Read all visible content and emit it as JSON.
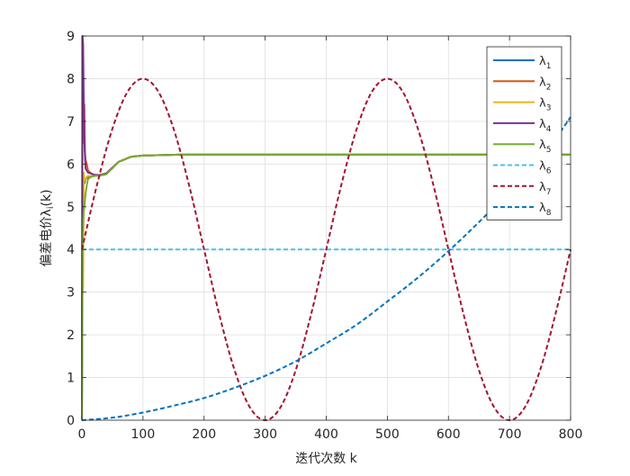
{
  "chart_data": {
    "type": "line",
    "title": "",
    "xlabel": "迭代次数 k",
    "ylabel_prefix": "偏差电价",
    "ylabel_symbol": "λ",
    "ylabel_sub": "i",
    "ylabel_suffix": "(k)",
    "xlim": [
      0,
      800
    ],
    "ylim": [
      0,
      9
    ],
    "xticks": [
      0,
      100,
      200,
      300,
      400,
      500,
      600,
      700,
      800
    ],
    "yticks": [
      0,
      1,
      2,
      3,
      4,
      5,
      6,
      7,
      8,
      9
    ],
    "grid": true,
    "legend_position": "top-right",
    "series": [
      {
        "name": "λ",
        "sub": "1",
        "color": "#0072BD",
        "style": "solid",
        "x": [
          0,
          1,
          2,
          4,
          6,
          10,
          20,
          30,
          40,
          60,
          80,
          100,
          130,
          160,
          200,
          300,
          400,
          500,
          600,
          700,
          800
        ],
        "y": [
          0,
          5.6,
          5.7,
          5.55,
          5.65,
          5.7,
          5.72,
          5.75,
          5.78,
          6.05,
          6.17,
          6.2,
          6.21,
          6.22,
          6.22,
          6.22,
          6.22,
          6.22,
          6.22,
          6.22,
          6.22
        ]
      },
      {
        "name": "λ",
        "sub": "2",
        "color": "#D95319",
        "style": "solid",
        "x": [
          0,
          1,
          2,
          3,
          4,
          5,
          6,
          8,
          10,
          15,
          20,
          30,
          40,
          60,
          80,
          100,
          130,
          160,
          200,
          300,
          400,
          500,
          600,
          700,
          800
        ],
        "y": [
          0,
          7.6,
          6.8,
          6.5,
          7.4,
          6.3,
          6.1,
          6.0,
          5.85,
          5.78,
          5.75,
          5.74,
          5.78,
          6.05,
          6.17,
          6.2,
          6.21,
          6.22,
          6.22,
          6.22,
          6.22,
          6.22,
          6.22,
          6.22,
          6.22
        ]
      },
      {
        "name": "λ",
        "sub": "3",
        "color": "#EDB120",
        "style": "solid",
        "x": [
          0,
          1,
          2,
          3,
          4,
          6,
          8,
          10,
          15,
          20,
          30,
          40,
          60,
          80,
          100,
          130,
          160,
          200,
          300,
          400,
          500,
          600,
          700,
          800
        ],
        "y": [
          0,
          3.0,
          3.1,
          5.8,
          5.6,
          5.65,
          5.7,
          5.72,
          5.72,
          5.73,
          5.74,
          5.78,
          6.05,
          6.17,
          6.2,
          6.21,
          6.22,
          6.22,
          6.22,
          6.22,
          6.22,
          6.22,
          6.22,
          6.22
        ]
      },
      {
        "name": "λ",
        "sub": "4",
        "color": "#7E2F8E",
        "style": "solid",
        "x": [
          0,
          1,
          2,
          3,
          4,
          5,
          6,
          8,
          10,
          15,
          20,
          30,
          40,
          60,
          80,
          100,
          130,
          160,
          200,
          300,
          400,
          500,
          600,
          700,
          800
        ],
        "y": [
          0,
          9.0,
          8.8,
          7.5,
          6.6,
          6.2,
          5.9,
          5.85,
          5.8,
          5.78,
          5.75,
          5.74,
          5.78,
          6.05,
          6.17,
          6.2,
          6.21,
          6.22,
          6.22,
          6.22,
          6.22,
          6.22,
          6.22,
          6.22,
          6.22
        ]
      },
      {
        "name": "λ",
        "sub": "5",
        "color": "#77AC30",
        "style": "solid",
        "x": [
          0,
          1,
          2,
          3,
          4,
          6,
          8,
          10,
          15,
          20,
          30,
          40,
          50,
          60,
          80,
          100,
          130,
          160,
          200,
          300,
          400,
          500,
          600,
          700,
          800
        ],
        "y": [
          0,
          4.3,
          4.6,
          4.9,
          5.0,
          5.3,
          5.5,
          5.65,
          5.7,
          5.72,
          5.73,
          5.76,
          5.9,
          6.05,
          6.17,
          6.2,
          6.21,
          6.22,
          6.22,
          6.22,
          6.22,
          6.22,
          6.22,
          6.22,
          6.22
        ]
      },
      {
        "name": "λ",
        "sub": "6",
        "color": "#4DBEEE",
        "style": "dashed",
        "x": [
          0,
          800
        ],
        "y": [
          4,
          4
        ]
      },
      {
        "name": "λ",
        "sub": "7",
        "color": "#A2142F",
        "style": "dashed",
        "x": [
          0,
          25,
          50,
          75,
          100,
          125,
          150,
          175,
          200,
          225,
          250,
          275,
          300,
          325,
          350,
          375,
          400,
          425,
          450,
          475,
          500,
          525,
          550,
          575,
          600,
          625,
          650,
          675,
          700,
          725,
          750,
          775,
          800
        ],
        "y": [
          4.0,
          5.53,
          6.83,
          7.7,
          8.0,
          7.7,
          6.83,
          5.53,
          4.0,
          2.47,
          1.17,
          0.3,
          0.0,
          0.3,
          1.17,
          2.47,
          4.0,
          5.53,
          6.83,
          7.7,
          8.0,
          7.7,
          6.83,
          5.53,
          4.0,
          2.47,
          1.17,
          0.3,
          0.0,
          0.3,
          1.17,
          2.47,
          4.0
        ],
        "phase_note": ""
      },
      {
        "name": "λ",
        "sub": "8",
        "color": "#0072BD",
        "style": "dashed",
        "x": [
          0,
          50,
          100,
          150,
          200,
          250,
          300,
          350,
          400,
          450,
          500,
          550,
          600,
          650,
          700,
          750,
          800
        ],
        "y": [
          0.0,
          0.06,
          0.18,
          0.34,
          0.52,
          0.76,
          1.04,
          1.38,
          1.8,
          2.24,
          2.78,
          3.34,
          3.96,
          4.64,
          5.36,
          6.1,
          7.1
        ]
      }
    ]
  }
}
